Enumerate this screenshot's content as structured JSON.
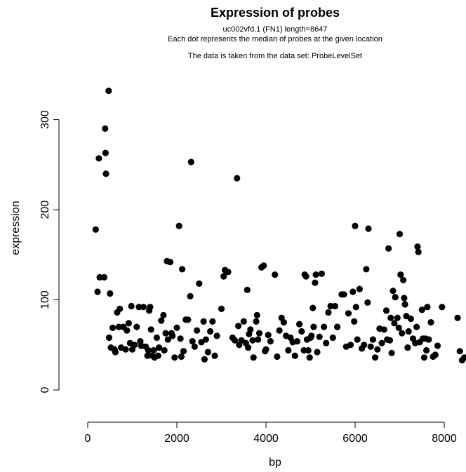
{
  "chart_data": {
    "type": "scatter",
    "title": "Expression of probes",
    "subtitle_lines": [
      "uc002vfd.1 (FN1) length=8647",
      "Each dot represents the median of probes at the given location",
      "The data is taken from the data set: ProbeLevelSet"
    ],
    "xlabel": "bp",
    "ylabel": "expression",
    "xlim": [
      0,
      8647
    ],
    "ylim": [
      0,
      340
    ],
    "x_ticks": [
      0,
      2000,
      4000,
      6000,
      8000
    ],
    "y_ticks": [
      0,
      100,
      200,
      300
    ],
    "x_tick_labels": [
      "0",
      "2000",
      "4000",
      "6000",
      "8000"
    ],
    "y_tick_labels": [
      "0",
      "100",
      "200",
      "300"
    ],
    "grid": false,
    "legend": "none",
    "point_color": "#000000",
    "points": [
      [
        180,
        178
      ],
      [
        220,
        109
      ],
      [
        250,
        257
      ],
      [
        270,
        125
      ],
      [
        370,
        125
      ],
      [
        390,
        290
      ],
      [
        400,
        263
      ],
      [
        410,
        240
      ],
      [
        470,
        332
      ],
      [
        480,
        58
      ],
      [
        500,
        107
      ],
      [
        520,
        47
      ],
      [
        560,
        69
      ],
      [
        600,
        45
      ],
      [
        620,
        42
      ],
      [
        660,
        86
      ],
      [
        700,
        70
      ],
      [
        720,
        90
      ],
      [
        750,
        47
      ],
      [
        800,
        70
      ],
      [
        850,
        45
      ],
      [
        880,
        66
      ],
      [
        920,
        74
      ],
      [
        950,
        52
      ],
      [
        980,
        93
      ],
      [
        1000,
        45
      ],
      [
        1050,
        50
      ],
      [
        1100,
        70
      ],
      [
        1150,
        92
      ],
      [
        1180,
        54
      ],
      [
        1200,
        49
      ],
      [
        1250,
        92
      ],
      [
        1300,
        48
      ],
      [
        1340,
        38
      ],
      [
        1360,
        44
      ],
      [
        1380,
        88
      ],
      [
        1400,
        92
      ],
      [
        1420,
        67
      ],
      [
        1450,
        38
      ],
      [
        1480,
        44
      ],
      [
        1500,
        36
      ],
      [
        1550,
        58
      ],
      [
        1580,
        38
      ],
      [
        1600,
        47
      ],
      [
        1650,
        77
      ],
      [
        1700,
        83
      ],
      [
        1720,
        44
      ],
      [
        1750,
        63
      ],
      [
        1780,
        143
      ],
      [
        1800,
        56
      ],
      [
        1850,
        142
      ],
      [
        1880,
        63
      ],
      [
        1900,
        60
      ],
      [
        1950,
        36
      ],
      [
        2000,
        69
      ],
      [
        2050,
        182
      ],
      [
        2080,
        57
      ],
      [
        2100,
        37
      ],
      [
        2120,
        134
      ],
      [
        2150,
        43
      ],
      [
        2200,
        78
      ],
      [
        2250,
        78
      ],
      [
        2300,
        104
      ],
      [
        2320,
        253
      ],
      [
        2350,
        54
      ],
      [
        2400,
        48
      ],
      [
        2450,
        66
      ],
      [
        2500,
        118
      ],
      [
        2550,
        53
      ],
      [
        2600,
        76
      ],
      [
        2620,
        34
      ],
      [
        2650,
        56
      ],
      [
        2700,
        42
      ],
      [
        2750,
        65
      ],
      [
        2800,
        76
      ],
      [
        2850,
        38
      ],
      [
        2900,
        60
      ],
      [
        3000,
        90
      ],
      [
        3050,
        126
      ],
      [
        3080,
        133
      ],
      [
        3150,
        131
      ],
      [
        3250,
        58
      ],
      [
        3300,
        55
      ],
      [
        3350,
        235
      ],
      [
        3380,
        71
      ],
      [
        3400,
        50
      ],
      [
        3450,
        55
      ],
      [
        3500,
        76
      ],
      [
        3550,
        52
      ],
      [
        3580,
        111
      ],
      [
        3600,
        47
      ],
      [
        3620,
        62
      ],
      [
        3650,
        67
      ],
      [
        3700,
        55
      ],
      [
        3720,
        36
      ],
      [
        3780,
        76
      ],
      [
        3800,
        83
      ],
      [
        3820,
        56
      ],
      [
        3850,
        63
      ],
      [
        3900,
        136
      ],
      [
        3950,
        138
      ],
      [
        3980,
        43
      ],
      [
        4000,
        45
      ],
      [
        4050,
        61
      ],
      [
        4100,
        54
      ],
      [
        4200,
        128
      ],
      [
        4250,
        37
      ],
      [
        4300,
        66
      ],
      [
        4350,
        80
      ],
      [
        4400,
        75
      ],
      [
        4450,
        60
      ],
      [
        4500,
        44
      ],
      [
        4550,
        58
      ],
      [
        4600,
        53
      ],
      [
        4650,
        38
      ],
      [
        4700,
        54
      ],
      [
        4750,
        73
      ],
      [
        4800,
        65
      ],
      [
        4850,
        44
      ],
      [
        4870,
        128
      ],
      [
        4900,
        126
      ],
      [
        4920,
        56
      ],
      [
        4950,
        44
      ],
      [
        4980,
        36
      ],
      [
        5000,
        58
      ],
      [
        5020,
        60
      ],
      [
        5050,
        91
      ],
      [
        5070,
        70
      ],
      [
        5100,
        119
      ],
      [
        5120,
        128
      ],
      [
        5150,
        42
      ],
      [
        5200,
        59
      ],
      [
        5250,
        129
      ],
      [
        5300,
        70
      ],
      [
        5350,
        52
      ],
      [
        5400,
        86
      ],
      [
        5450,
        93
      ],
      [
        5500,
        58
      ],
      [
        5550,
        93
      ],
      [
        5600,
        70
      ],
      [
        5700,
        106
      ],
      [
        5750,
        106
      ],
      [
        5800,
        48
      ],
      [
        5850,
        85
      ],
      [
        5900,
        50
      ],
      [
        5950,
        109
      ],
      [
        5980,
        76
      ],
      [
        6000,
        182
      ],
      [
        6020,
        92
      ],
      [
        6050,
        56
      ],
      [
        6100,
        112
      ],
      [
        6150,
        46
      ],
      [
        6200,
        50
      ],
      [
        6250,
        134
      ],
      [
        6280,
        97
      ],
      [
        6300,
        179
      ],
      [
        6350,
        48
      ],
      [
        6400,
        56
      ],
      [
        6450,
        36
      ],
      [
        6500,
        45
      ],
      [
        6550,
        68
      ],
      [
        6600,
        52
      ],
      [
        6650,
        67
      ],
      [
        6700,
        88
      ],
      [
        6720,
        56
      ],
      [
        6750,
        157
      ],
      [
        6780,
        55
      ],
      [
        6800,
        80
      ],
      [
        6820,
        41
      ],
      [
        6850,
        110
      ],
      [
        6880,
        74
      ],
      [
        6900,
        103
      ],
      [
        6950,
        80
      ],
      [
        6980,
        69
      ],
      [
        7000,
        173
      ],
      [
        7020,
        128
      ],
      [
        7050,
        63
      ],
      [
        7080,
        122
      ],
      [
        7100,
        102
      ],
      [
        7120,
        95
      ],
      [
        7150,
        82
      ],
      [
        7180,
        47
      ],
      [
        7200,
        65
      ],
      [
        7250,
        79
      ],
      [
        7300,
        57
      ],
      [
        7350,
        52
      ],
      [
        7380,
        70
      ],
      [
        7400,
        159
      ],
      [
        7420,
        153
      ],
      [
        7450,
        53
      ],
      [
        7500,
        89
      ],
      [
        7520,
        57
      ],
      [
        7550,
        36
      ],
      [
        7580,
        57
      ],
      [
        7600,
        44
      ],
      [
        7620,
        92
      ],
      [
        7650,
        56
      ],
      [
        7700,
        75
      ],
      [
        7750,
        37
      ],
      [
        7800,
        39
      ],
      [
        7850,
        49
      ],
      [
        7950,
        92
      ],
      [
        8300,
        80
      ],
      [
        8350,
        43
      ],
      [
        8400,
        33
      ],
      [
        8450,
        36
      ],
      [
        8550,
        34
      ],
      [
        8600,
        42
      ],
      [
        8630,
        38
      ],
      [
        8647,
        33
      ]
    ]
  }
}
